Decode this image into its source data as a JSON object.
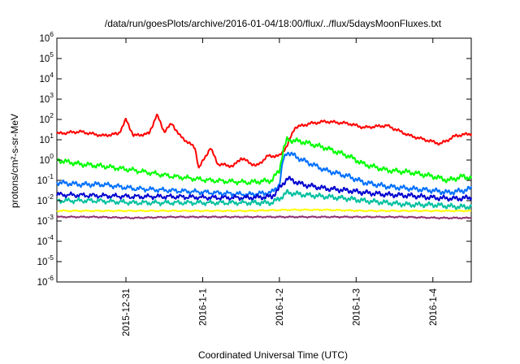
{
  "chart_data": {
    "type": "line",
    "title": "/data/run/goesPlots/archive/2016-01-04/18:00/flux/../flux/5daysMoonFluxes.txt",
    "xlabel": "Coordinated Universal Time (UTC)",
    "ylabel": "protons/cm²-s-sr-MeV",
    "yscale": "log",
    "ylim": [
      1e-06,
      1000000.0
    ],
    "xlim": [
      0,
      5.4
    ],
    "grid": false,
    "legend": "none",
    "y_ticks": [
      {
        "base": "10",
        "exp": "-6",
        "value": -6
      },
      {
        "base": "10",
        "exp": "-5",
        "value": -5
      },
      {
        "base": "10",
        "exp": "-4",
        "value": -4
      },
      {
        "base": "10",
        "exp": "-3",
        "value": -3
      },
      {
        "base": "10",
        "exp": "-2",
        "value": -2
      },
      {
        "base": "10",
        "exp": "-1",
        "value": -1
      },
      {
        "base": "10",
        "exp": "0",
        "value": 0
      },
      {
        "base": "10",
        "exp": "1",
        "value": 1
      },
      {
        "base": "10",
        "exp": "2",
        "value": 2
      },
      {
        "base": "10",
        "exp": "3",
        "value": 3
      },
      {
        "base": "10",
        "exp": "4",
        "value": 4
      },
      {
        "base": "10",
        "exp": "5",
        "value": 5
      },
      {
        "base": "10",
        "exp": "6",
        "value": 6
      }
    ],
    "x_ticks": [
      {
        "label": "2015-12-31",
        "x": 0.9
      },
      {
        "label": "2016-1-1",
        "x": 1.9
      },
      {
        "label": "2016-1-2",
        "x": 2.9
      },
      {
        "label": "2016-1-3",
        "x": 3.9
      },
      {
        "label": "2016-1-4",
        "x": 4.9
      }
    ],
    "series": [
      {
        "color": "#ff0000",
        "x": [
          0,
          0.3,
          0.6,
          0.8,
          0.85,
          0.9,
          1.0,
          1.2,
          1.3,
          1.32,
          1.4,
          1.5,
          1.6,
          1.8,
          1.85,
          2.0,
          2.1,
          2.3,
          2.4,
          2.6,
          2.75,
          2.9,
          3.0,
          3.1,
          3.3,
          3.5,
          3.8,
          4.0,
          4.3,
          4.6,
          4.9,
          5.0,
          5.2,
          5.4
        ],
        "y": [
          1.3,
          1.4,
          1.2,
          1.3,
          1.6,
          2.0,
          1.2,
          1.3,
          2.2,
          2.1,
          1.4,
          1.8,
          1.2,
          0.6,
          -0.4,
          0.6,
          -0.2,
          -0.3,
          0.1,
          -0.3,
          0.2,
          0.2,
          0.7,
          1.6,
          1.8,
          1.9,
          1.8,
          1.6,
          1.7,
          1.2,
          0.9,
          0.8,
          1.2,
          1.3
        ]
      },
      {
        "color": "#00ff00",
        "x": [
          0,
          0.3,
          0.6,
          1.0,
          1.5,
          2.0,
          2.5,
          2.8,
          2.9,
          2.95,
          3.0,
          3.2,
          3.5,
          3.8,
          4.0,
          4.3,
          4.6,
          4.9,
          5.1,
          5.3,
          5.4
        ],
        "y": [
          0.0,
          -0.2,
          -0.3,
          -0.5,
          -0.8,
          -1.0,
          -1.1,
          -1.0,
          -0.5,
          0.5,
          1.0,
          0.9,
          0.6,
          0.2,
          -0.2,
          -0.5,
          -0.6,
          -0.8,
          -1.0,
          -0.8,
          -0.9
        ]
      },
      {
        "color": "#0070ff",
        "x": [
          0,
          0.3,
          0.6,
          1.0,
          1.5,
          2.0,
          2.5,
          2.8,
          2.9,
          2.95,
          3.0,
          3.2,
          3.5,
          3.8,
          4.0,
          4.3,
          4.6,
          4.9,
          5.1,
          5.3,
          5.4
        ],
        "y": [
          -1.1,
          -1.2,
          -1.2,
          -1.4,
          -1.5,
          -1.6,
          -1.7,
          -1.6,
          -1.2,
          0.0,
          0.4,
          0.0,
          -0.5,
          -0.8,
          -1.1,
          -1.3,
          -1.4,
          -1.5,
          -1.6,
          -1.5,
          -1.4
        ]
      },
      {
        "color": "#0000d0",
        "x": [
          0,
          0.5,
          1.0,
          1.5,
          2.0,
          2.5,
          2.8,
          2.9,
          3.0,
          3.2,
          3.5,
          3.8,
          4.0,
          4.3,
          4.6,
          4.9,
          5.2,
          5.4
        ],
        "y": [
          -1.7,
          -1.75,
          -1.8,
          -1.8,
          -1.85,
          -1.85,
          -1.8,
          -1.4,
          -0.9,
          -1.2,
          -1.4,
          -1.5,
          -1.6,
          -1.7,
          -1.75,
          -1.85,
          -1.9,
          -1.85
        ]
      },
      {
        "color": "#00c0a0",
        "x": [
          0,
          0.5,
          1.0,
          1.5,
          2.0,
          2.5,
          2.8,
          2.9,
          3.0,
          3.2,
          3.5,
          3.8,
          4.0,
          4.3,
          4.6,
          4.9,
          5.2,
          5.4
        ],
        "y": [
          -2.0,
          -2.0,
          -2.1,
          -2.1,
          -2.1,
          -2.1,
          -2.1,
          -1.9,
          -1.6,
          -1.7,
          -1.8,
          -1.9,
          -2.0,
          -2.1,
          -2.2,
          -2.2,
          -2.3,
          -2.3
        ]
      },
      {
        "color": "#ffff00",
        "x": [
          0,
          0.5,
          1.0,
          1.5,
          2.0,
          2.5,
          3.0,
          3.5,
          4.0,
          4.5,
          5.0,
          5.4
        ],
        "y": [
          -2.5,
          -2.5,
          -2.5,
          -2.5,
          -2.5,
          -2.5,
          -2.45,
          -2.45,
          -2.5,
          -2.5,
          -2.5,
          -2.5
        ]
      },
      {
        "color": "#903070",
        "x": [
          0,
          0.5,
          1.0,
          1.5,
          2.0,
          2.5,
          3.0,
          3.5,
          4.0,
          4.5,
          5.0,
          5.4
        ],
        "y": [
          -2.8,
          -2.8,
          -2.85,
          -2.8,
          -2.8,
          -2.8,
          -2.8,
          -2.8,
          -2.8,
          -2.8,
          -2.85,
          -2.85
        ]
      }
    ]
  }
}
